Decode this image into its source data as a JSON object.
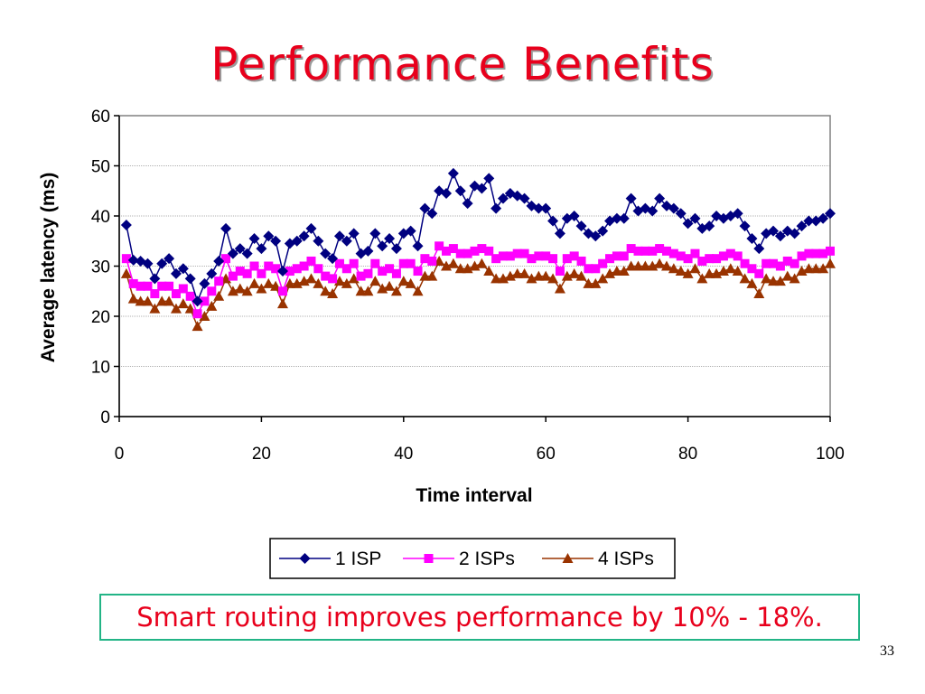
{
  "slide": {
    "title": "Performance Benefits",
    "callout": "Smart routing improves performance by 10% - 18%.",
    "page_number": "33"
  },
  "chart_data": {
    "type": "line",
    "title": "",
    "xlabel": "Time interval",
    "ylabel": "Average latency (ms)",
    "xlim": [
      0,
      100
    ],
    "ylim": [
      0,
      60
    ],
    "xticks": [
      0,
      20,
      40,
      60,
      80,
      100
    ],
    "yticks": [
      0,
      10,
      20,
      30,
      40,
      50,
      60
    ],
    "grid": "horizontal",
    "legend_position": "bottom",
    "x": [
      1,
      2,
      3,
      4,
      5,
      6,
      7,
      8,
      9,
      10,
      11,
      12,
      13,
      14,
      15,
      16,
      17,
      18,
      19,
      20,
      21,
      22,
      23,
      24,
      25,
      26,
      27,
      28,
      29,
      30,
      31,
      32,
      33,
      34,
      35,
      36,
      37,
      38,
      39,
      40,
      41,
      42,
      43,
      44,
      45,
      46,
      47,
      48,
      49,
      50,
      51,
      52,
      53,
      54,
      55,
      56,
      57,
      58,
      59,
      60,
      61,
      62,
      63,
      64,
      65,
      66,
      67,
      68,
      69,
      70,
      71,
      72,
      73,
      74,
      75,
      76,
      77,
      78,
      79,
      80,
      81,
      82,
      83,
      84,
      85,
      86,
      87,
      88,
      89,
      90,
      91,
      92,
      93,
      94,
      95,
      96,
      97,
      98,
      99,
      100
    ],
    "series": [
      {
        "name": "1 ISP",
        "color": "#000080",
        "marker": "diamond",
        "values": [
          38.2,
          31.2,
          31.0,
          30.5,
          27.5,
          30.5,
          31.5,
          28.5,
          29.5,
          27.5,
          23.0,
          26.5,
          28.5,
          31.0,
          37.5,
          32.5,
          33.5,
          32.5,
          35.5,
          33.5,
          36.0,
          35.0,
          29.0,
          34.5,
          35.0,
          36.0,
          37.5,
          35.0,
          32.5,
          31.5,
          36.0,
          35.0,
          36.5,
          32.5,
          33.0,
          36.5,
          34.0,
          35.5,
          33.5,
          36.5,
          37.0,
          34.0,
          41.5,
          40.5,
          45.0,
          44.5,
          48.5,
          45.0,
          42.5,
          46.0,
          45.5,
          47.5,
          41.5,
          43.5,
          44.5,
          44.0,
          43.5,
          42.0,
          41.5,
          41.5,
          39.0,
          36.5,
          39.5,
          40.0,
          38.0,
          36.5,
          36.0,
          37.0,
          39.0,
          39.5,
          39.5,
          43.5,
          41.0,
          41.5,
          41.0,
          43.5,
          42.0,
          41.5,
          40.5,
          38.5,
          39.5,
          37.5,
          38.0,
          40.0,
          39.5,
          40.0,
          40.5,
          38.0,
          35.5,
          33.5,
          36.5,
          37.0,
          36.0,
          37.0,
          36.5,
          38.0,
          39.0,
          39.0,
          39.5,
          40.5
        ]
      },
      {
        "name": "2 ISPs",
        "color": "#ff00ff",
        "marker": "square",
        "values": [
          31.5,
          26.5,
          26.0,
          26.0,
          24.5,
          26.0,
          26.0,
          24.5,
          25.5,
          24.0,
          20.5,
          23.0,
          25.0,
          27.0,
          31.5,
          28.0,
          29.0,
          28.5,
          30.0,
          28.5,
          30.0,
          29.5,
          25.0,
          29.0,
          29.5,
          30.0,
          31.0,
          29.5,
          28.0,
          27.5,
          30.5,
          29.5,
          30.5,
          28.0,
          28.5,
          30.5,
          29.0,
          29.5,
          28.5,
          30.5,
          30.5,
          29.0,
          31.5,
          31.0,
          34.0,
          33.0,
          33.5,
          32.5,
          32.5,
          33.0,
          33.5,
          33.0,
          31.5,
          32.0,
          32.0,
          32.5,
          32.5,
          31.5,
          32.0,
          32.0,
          31.5,
          29.0,
          31.5,
          32.0,
          31.0,
          29.5,
          29.5,
          30.5,
          31.5,
          32.0,
          32.0,
          33.5,
          33.0,
          33.0,
          33.0,
          33.5,
          33.0,
          32.5,
          32.0,
          31.5,
          32.5,
          31.0,
          31.5,
          31.5,
          32.0,
          32.5,
          32.0,
          30.5,
          29.5,
          28.5,
          30.5,
          30.5,
          30.0,
          31.0,
          30.5,
          32.0,
          32.5,
          32.5,
          32.5,
          33.0
        ]
      },
      {
        "name": "4 ISPs",
        "color": "#993300",
        "marker": "triangle",
        "values": [
          28.5,
          23.5,
          23.0,
          23.0,
          21.5,
          23.0,
          23.0,
          21.5,
          22.5,
          21.5,
          18.0,
          20.0,
          22.0,
          24.0,
          27.5,
          25.0,
          25.5,
          25.0,
          26.5,
          25.5,
          26.5,
          26.0,
          22.5,
          26.5,
          26.5,
          27.0,
          27.5,
          26.5,
          25.0,
          24.5,
          27.0,
          26.5,
          27.5,
          25.0,
          25.0,
          27.0,
          25.5,
          26.0,
          25.0,
          27.0,
          26.5,
          25.0,
          28.0,
          28.0,
          31.0,
          30.0,
          30.5,
          29.5,
          29.5,
          30.0,
          30.5,
          29.0,
          27.5,
          27.5,
          28.0,
          28.5,
          28.5,
          27.5,
          28.0,
          28.0,
          27.5,
          25.5,
          28.0,
          28.5,
          28.0,
          26.5,
          26.5,
          27.5,
          28.5,
          29.0,
          29.0,
          30.0,
          30.0,
          30.0,
          30.0,
          30.5,
          30.0,
          29.5,
          29.0,
          28.5,
          29.5,
          27.5,
          28.5,
          28.5,
          29.0,
          29.5,
          29.0,
          27.5,
          26.5,
          24.5,
          27.5,
          27.0,
          27.0,
          28.0,
          27.5,
          29.0,
          29.5,
          29.5,
          29.5,
          30.5
        ]
      }
    ]
  }
}
